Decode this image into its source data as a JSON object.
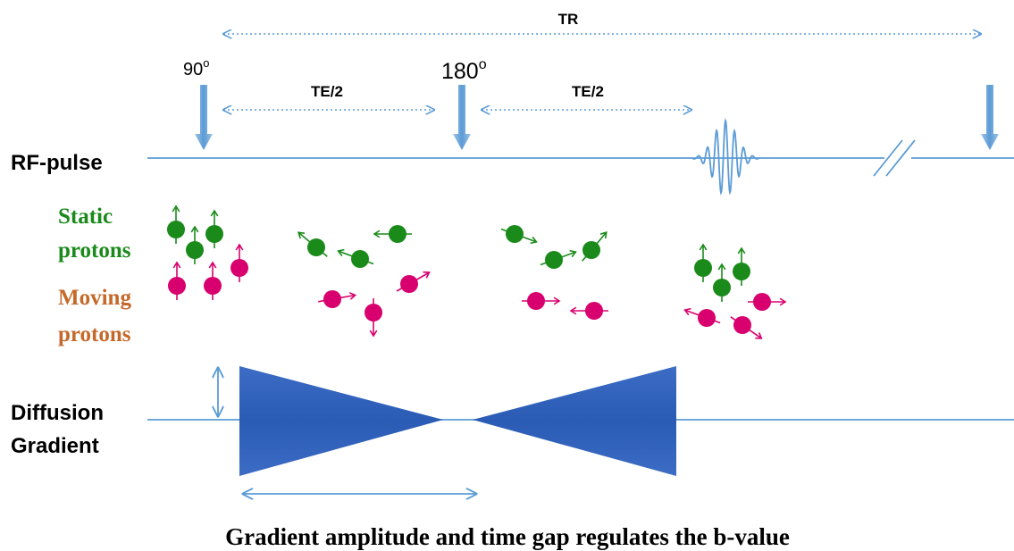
{
  "timing": {
    "tr": "TR",
    "te": [
      "TE/2",
      "TE/2"
    ]
  },
  "rf": {
    "label": "RF-pulse",
    "pulses": [
      {
        "label": "90",
        "sup": "o"
      },
      {
        "label": "180",
        "sup": "o"
      }
    ]
  },
  "protons": {
    "static": [
      "Static",
      "protons"
    ],
    "moving": [
      "Moving",
      "protons"
    ]
  },
  "gradient": {
    "label": [
      "Diffusion",
      "Gradient"
    ]
  },
  "caption": "Gradient amplitude and time gap regulates the b-value"
}
